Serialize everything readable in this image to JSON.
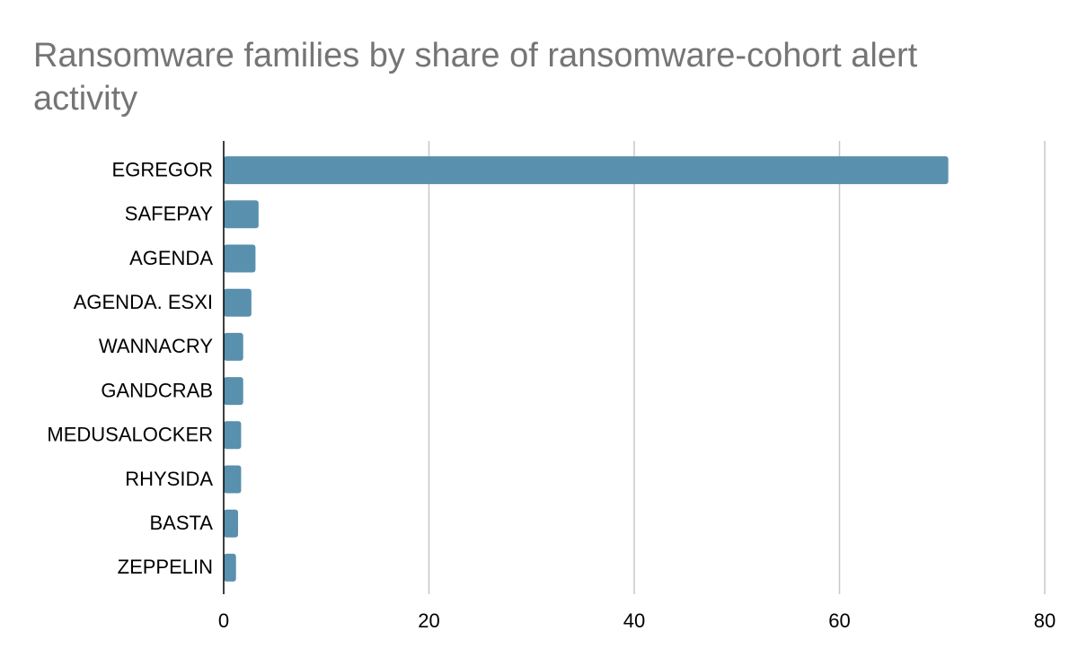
{
  "chart_data": {
    "type": "bar",
    "orientation": "horizontal",
    "title": "Ransomware families by share of ransomware-cohort alert activity",
    "categories": [
      "EGREGOR",
      "SAFEPAY",
      "AGENDA",
      "AGENDA. ESXI",
      "WANNACRY",
      "GANDCRAB",
      "MEDUSALOCKER",
      "RHYSIDA",
      "BASTA",
      "ZEPPELIN"
    ],
    "values": [
      70.6,
      3.4,
      3.1,
      2.7,
      1.9,
      1.9,
      1.7,
      1.7,
      1.4,
      1.2
    ],
    "xlim": [
      0,
      80
    ],
    "xticks": [
      0,
      20,
      40,
      60,
      80
    ],
    "grid": true,
    "bar_color": "#5990ad",
    "grid_color": "#c8c8c8",
    "axis_color": "#000000"
  }
}
